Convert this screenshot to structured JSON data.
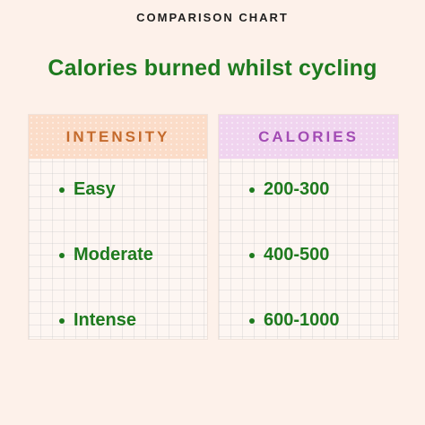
{
  "header": {
    "eyebrow": "COMPARISON CHART",
    "title": "Calories burned whilst cycling"
  },
  "columns": {
    "intensity": {
      "heading": "INTENSITY",
      "items": [
        "Easy",
        "Moderate",
        "Intense"
      ]
    },
    "calories": {
      "heading": "CALORIES",
      "items": [
        "200-300",
        "400-500",
        "600-1000"
      ]
    }
  },
  "colors": {
    "background": "#fdf1ea",
    "title_green": "#1e7a1e",
    "intensity_header_bg": "#fbdcc8",
    "intensity_header_text": "#c46a2c",
    "calories_header_bg": "#f0d4ef",
    "calories_header_text": "#a24bb4"
  }
}
